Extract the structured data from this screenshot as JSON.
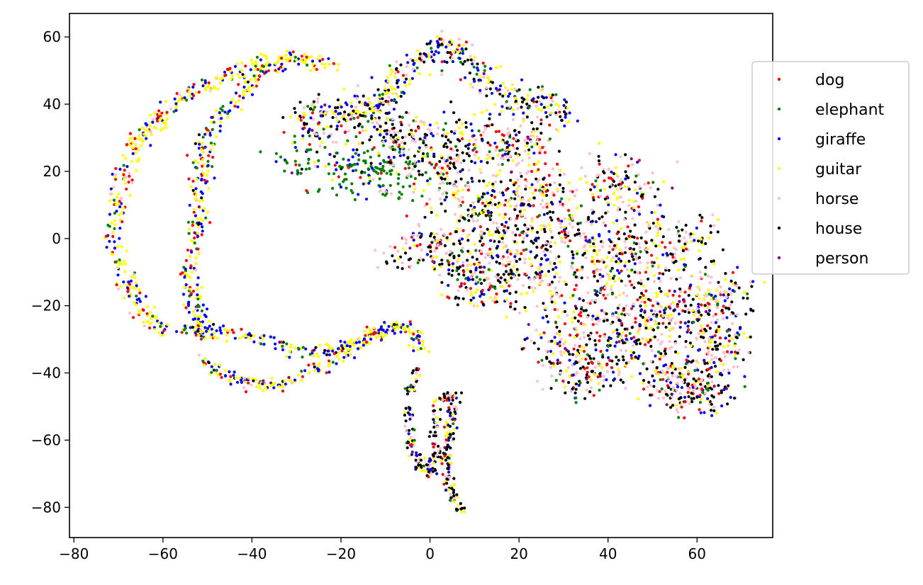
{
  "chart_data": {
    "type": "scatter",
    "title": "",
    "xlabel": "",
    "ylabel": "",
    "xlim": [
      -81,
      77
    ],
    "ylim": [
      -89,
      67
    ],
    "xticks": [
      -80,
      -60,
      -40,
      -20,
      0,
      20,
      40,
      60
    ],
    "yticks": [
      -80,
      -60,
      -40,
      -20,
      0,
      20,
      40,
      60
    ],
    "grid": false,
    "legend_position": "right",
    "series": [
      {
        "name": "dog",
        "color": "#ff0000"
      },
      {
        "name": "elephant",
        "color": "#008000"
      },
      {
        "name": "giraffe",
        "color": "#0000ff"
      },
      {
        "name": "guitar",
        "color": "#ffff00"
      },
      {
        "name": "horse",
        "color": "#ffc0cb"
      },
      {
        "name": "house",
        "color": "#000000"
      },
      {
        "name": "person",
        "color": "#800080"
      }
    ],
    "point_paths": [
      {
        "region": "outer-left-arc",
        "points": [
          [
            -22,
            52
          ],
          [
            -28,
            53
          ],
          [
            -35,
            54
          ],
          [
            -42,
            51
          ],
          [
            -48,
            47
          ],
          [
            -54,
            43
          ],
          [
            -59,
            39
          ],
          [
            -63,
            33
          ],
          [
            -66,
            28
          ],
          [
            -68,
            22
          ],
          [
            -70,
            15
          ],
          [
            -71,
            8
          ],
          [
            -71,
            1
          ],
          [
            -70,
            -6
          ],
          [
            -68,
            -12
          ],
          [
            -66,
            -18
          ],
          [
            -63,
            -24
          ],
          [
            -60,
            -28
          ]
        ],
        "spread": 1.3,
        "weights": [
          3,
          1,
          3,
          8,
          1,
          0,
          0.2
        ]
      },
      {
        "region": "inner-arc",
        "points": [
          [
            -33,
            52
          ],
          [
            -38,
            50
          ],
          [
            -42,
            44
          ],
          [
            -46,
            38
          ],
          [
            -49,
            32
          ],
          [
            -51,
            24
          ],
          [
            -52,
            15
          ],
          [
            -52,
            6
          ],
          [
            -53,
            -3
          ],
          [
            -54,
            -12
          ],
          [
            -53,
            -20
          ],
          [
            -52,
            -27
          ],
          [
            -50,
            -29
          ]
        ],
        "spread": 1.2,
        "weights": [
          3,
          2,
          6,
          7,
          0.5,
          0.5,
          0.2
        ]
      },
      {
        "region": "lower-curve-1",
        "points": [
          [
            -57,
            -28
          ],
          [
            -50,
            -27
          ],
          [
            -44,
            -28
          ],
          [
            -38,
            -30
          ],
          [
            -32,
            -33
          ],
          [
            -26,
            -34
          ],
          [
            -20,
            -33
          ],
          [
            -15,
            -30
          ],
          [
            -10,
            -27
          ],
          [
            -6,
            -26
          ],
          [
            -3,
            -29
          ],
          [
            -2,
            -33
          ]
        ],
        "spread": 1.0,
        "weights": [
          2,
          1,
          5,
          7,
          0.5,
          0.5,
          0.2
        ]
      },
      {
        "region": "lower-curve-2",
        "points": [
          [
            -52,
            -37
          ],
          [
            -48,
            -39
          ],
          [
            -44,
            -42
          ],
          [
            -40,
            -43
          ],
          [
            -35,
            -44
          ],
          [
            -31,
            -42
          ],
          [
            -26,
            -40
          ],
          [
            -22,
            -37
          ],
          [
            -18,
            -33
          ],
          [
            -14,
            -29
          ],
          [
            -10,
            -27
          ]
        ],
        "spread": 1.0,
        "weights": [
          2,
          1,
          5,
          7,
          0.5,
          0.5,
          0.2
        ]
      },
      {
        "region": "lower-loop",
        "points": [
          [
            -3,
            -40
          ],
          [
            -5,
            -46
          ],
          [
            -5,
            -54
          ],
          [
            -4,
            -62
          ],
          [
            -2,
            -68
          ],
          [
            0,
            -70
          ],
          [
            1,
            -64
          ],
          [
            1,
            -56
          ],
          [
            2,
            -49
          ],
          [
            5,
            -46
          ],
          [
            5,
            -53
          ],
          [
            4,
            -60
          ],
          [
            4,
            -66
          ],
          [
            4,
            -72
          ],
          [
            5,
            -77
          ],
          [
            7,
            -81
          ]
        ],
        "spread": 0.7,
        "weights": [
          1,
          1,
          2,
          3,
          2,
          5,
          0.2
        ]
      },
      {
        "region": "elephant-cluster",
        "points": [
          [
            -28,
            22
          ],
          [
            -22,
            22
          ],
          [
            -16,
            20
          ],
          [
            -10,
            19
          ],
          [
            -5,
            20
          ],
          [
            -12,
            24
          ],
          [
            -18,
            18
          ],
          [
            -8,
            15
          ]
        ],
        "spread": 2.5,
        "weights": [
          1,
          12,
          2,
          1,
          1,
          1,
          0.1
        ]
      },
      {
        "region": "upper-band",
        "points": [
          [
            -30,
            38
          ],
          [
            -24,
            37
          ],
          [
            -18,
            38
          ],
          [
            -12,
            40
          ],
          [
            -8,
            44
          ],
          [
            -5,
            50
          ],
          [
            0,
            55
          ],
          [
            4,
            58
          ],
          [
            8,
            54
          ],
          [
            12,
            47
          ],
          [
            18,
            43
          ],
          [
            25,
            40
          ],
          [
            31,
            38
          ],
          [
            -28,
            31
          ],
          [
            -22,
            34
          ]
        ],
        "spread": 2.2,
        "weights": [
          1,
          1,
          3,
          3,
          2,
          3,
          0.2
        ]
      },
      {
        "region": "mid-cluster",
        "points": [
          [
            -12,
            34
          ],
          [
            -6,
            30
          ],
          [
            -2,
            24
          ],
          [
            4,
            20
          ],
          [
            8,
            12
          ],
          [
            12,
            6
          ],
          [
            16,
            8
          ],
          [
            20,
            14
          ],
          [
            14,
            -2
          ],
          [
            10,
            -10
          ],
          [
            20,
            0
          ],
          [
            28,
            4
          ],
          [
            34,
            -4
          ],
          [
            26,
            -8
          ],
          [
            18,
            -12
          ],
          [
            10,
            -14
          ],
          [
            24,
            -18
          ],
          [
            32,
            -24
          ],
          [
            38,
            -14
          ],
          [
            44,
            -4
          ],
          [
            36,
            4
          ],
          [
            28,
            14
          ],
          [
            40,
            18
          ],
          [
            46,
            12
          ],
          [
            50,
            2
          ],
          [
            54,
            -6
          ],
          [
            48,
            -18
          ],
          [
            56,
            -22
          ],
          [
            60,
            -30
          ],
          [
            64,
            -36
          ],
          [
            58,
            -42
          ],
          [
            52,
            -40
          ],
          [
            44,
            -32
          ],
          [
            38,
            -38
          ],
          [
            30,
            -34
          ],
          [
            62,
            -20
          ],
          [
            60,
            0
          ],
          [
            66,
            -16
          ],
          [
            6,
            30
          ],
          [
            14,
            28
          ],
          [
            22,
            30
          ],
          [
            20,
            24
          ],
          [
            2,
            -2
          ],
          [
            -2,
            -4
          ],
          [
            48,
            -28
          ],
          [
            40,
            -26
          ],
          [
            66,
            -30
          ],
          [
            56,
            -46
          ],
          [
            62,
            -46
          ],
          [
            34,
            -42
          ]
        ],
        "spread": 2.4,
        "weights": [
          1.3,
          0.6,
          1.2,
          2,
          3,
          3.5,
          0.2
        ]
      }
    ],
    "point_count": 4400,
    "seed": 2024
  },
  "legend": {
    "items": [
      "dog",
      "elephant",
      "giraffe",
      "guitar",
      "horse",
      "house",
      "person"
    ]
  }
}
